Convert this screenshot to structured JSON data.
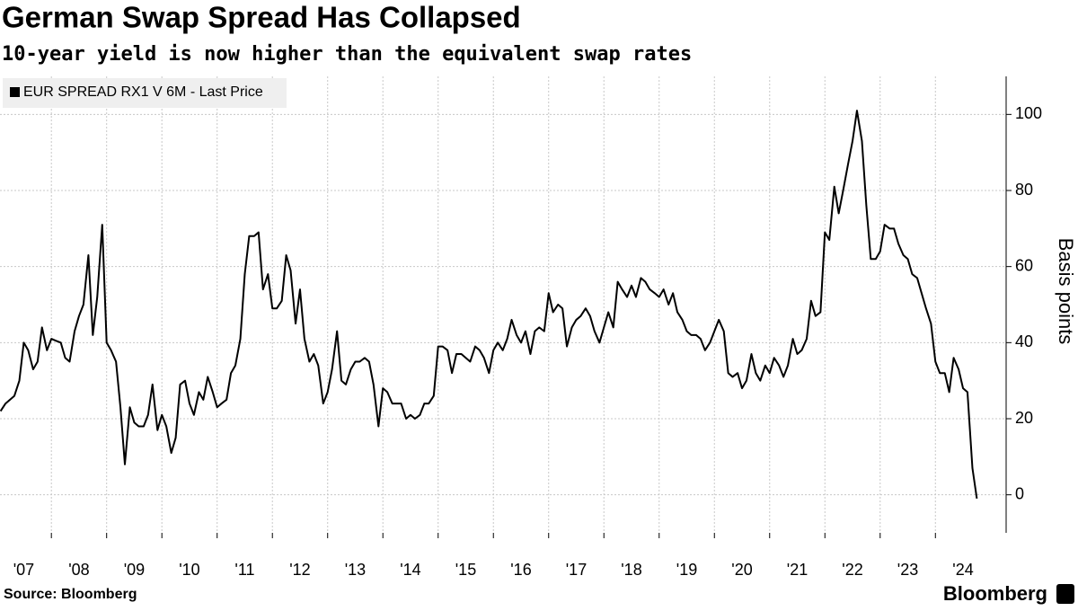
{
  "chart_data": {
    "type": "line",
    "title": "German Swap Spread Has Collapsed",
    "subtitle": "10-year yield is now higher than the equivalent swap rates",
    "y_label": "Basis points",
    "source": "Source: Bloomberg",
    "brand": "Bloomberg",
    "legend_position": "upper left",
    "grid": true,
    "xlim": [
      2007.07,
      2025.28
    ],
    "xticks": [
      {
        "value": 2007,
        "label": "'07"
      },
      {
        "value": 2008,
        "label": "'08"
      },
      {
        "value": 2009,
        "label": "'09"
      },
      {
        "value": 2010,
        "label": "'10"
      },
      {
        "value": 2011,
        "label": "'11"
      },
      {
        "value": 2012,
        "label": "'12"
      },
      {
        "value": 2013,
        "label": "'13"
      },
      {
        "value": 2014,
        "label": "'14"
      },
      {
        "value": 2015,
        "label": "'15"
      },
      {
        "value": 2016,
        "label": "'16"
      },
      {
        "value": 2017,
        "label": "'17"
      },
      {
        "value": 2018,
        "label": "'18"
      },
      {
        "value": 2019,
        "label": "'19"
      },
      {
        "value": 2020,
        "label": "'20"
      },
      {
        "value": 2021,
        "label": "'21"
      },
      {
        "value": 2022,
        "label": "'22"
      },
      {
        "value": 2023,
        "label": "'23"
      },
      {
        "value": 2024,
        "label": "'24"
      }
    ],
    "ylim": [
      -10,
      110
    ],
    "yticks": [
      0,
      20,
      40,
      60,
      80,
      100
    ],
    "x": [
      2007.08,
      2007.17,
      2007.25,
      2007.33,
      2007.42,
      2007.5,
      2007.58,
      2007.67,
      2007.75,
      2007.83,
      2007.92,
      2008,
      2008.08,
      2008.17,
      2008.25,
      2008.33,
      2008.42,
      2008.5,
      2008.58,
      2008.67,
      2008.75,
      2008.83,
      2008.92,
      2009,
      2009.08,
      2009.17,
      2009.25,
      2009.33,
      2009.42,
      2009.5,
      2009.58,
      2009.67,
      2009.75,
      2009.83,
      2009.92,
      2010,
      2010.08,
      2010.17,
      2010.25,
      2010.33,
      2010.42,
      2010.5,
      2010.58,
      2010.67,
      2010.75,
      2010.83,
      2010.92,
      2011,
      2011.08,
      2011.17,
      2011.25,
      2011.33,
      2011.42,
      2011.5,
      2011.58,
      2011.67,
      2011.75,
      2011.83,
      2011.92,
      2012,
      2012.08,
      2012.17,
      2012.25,
      2012.33,
      2012.42,
      2012.5,
      2012.58,
      2012.67,
      2012.75,
      2012.83,
      2012.92,
      2013,
      2013.08,
      2013.17,
      2013.25,
      2013.33,
      2013.42,
      2013.5,
      2013.58,
      2013.67,
      2013.75,
      2013.83,
      2013.92,
      2014,
      2014.08,
      2014.17,
      2014.25,
      2014.33,
      2014.42,
      2014.5,
      2014.58,
      2014.67,
      2014.75,
      2014.83,
      2014.92,
      2015,
      2015.08,
      2015.17,
      2015.25,
      2015.33,
      2015.42,
      2015.5,
      2015.58,
      2015.67,
      2015.75,
      2015.83,
      2015.92,
      2016,
      2016.08,
      2016.17,
      2016.25,
      2016.33,
      2016.42,
      2016.5,
      2016.58,
      2016.67,
      2016.75,
      2016.83,
      2016.92,
      2017,
      2017.08,
      2017.17,
      2017.25,
      2017.33,
      2017.42,
      2017.5,
      2017.58,
      2017.67,
      2017.75,
      2017.83,
      2017.92,
      2018,
      2018.08,
      2018.17,
      2018.25,
      2018.33,
      2018.42,
      2018.5,
      2018.58,
      2018.67,
      2018.75,
      2018.83,
      2018.92,
      2019,
      2019.08,
      2019.17,
      2019.25,
      2019.33,
      2019.42,
      2019.5,
      2019.58,
      2019.67,
      2019.75,
      2019.83,
      2019.92,
      2020,
      2020.08,
      2020.17,
      2020.25,
      2020.33,
      2020.42,
      2020.5,
      2020.58,
      2020.67,
      2020.75,
      2020.83,
      2020.92,
      2021,
      2021.08,
      2021.17,
      2021.25,
      2021.33,
      2021.42,
      2021.5,
      2021.58,
      2021.67,
      2021.75,
      2021.83,
      2021.92,
      2022,
      2022.08,
      2022.17,
      2022.25,
      2022.33,
      2022.42,
      2022.5,
      2022.58,
      2022.67,
      2022.75,
      2022.83,
      2022.92,
      2023,
      2023.08,
      2023.17,
      2023.25,
      2023.33,
      2023.42,
      2023.5,
      2023.58,
      2023.67,
      2023.75,
      2023.83,
      2023.92,
      2024,
      2024.08,
      2024.17,
      2024.25,
      2024.33,
      2024.42,
      2024.5,
      2024.58,
      2024.67,
      2024.75
    ],
    "series": [
      {
        "name": "EUR SPREAD RX1 V 6M - Last Price",
        "color": "#000000",
        "values": [
          22,
          24,
          25,
          26,
          30,
          40,
          38,
          33,
          35,
          44,
          38,
          41,
          40.5,
          40,
          36,
          35,
          43,
          47,
          50,
          63,
          42,
          52,
          71,
          40,
          38,
          35,
          23,
          8,
          23,
          19,
          18,
          18,
          21,
          29,
          17,
          21,
          18,
          11,
          15,
          29,
          30,
          24,
          21,
          27,
          25,
          31,
          27,
          23,
          24,
          25,
          32,
          34,
          41,
          58,
          68,
          68,
          69,
          54,
          58,
          49,
          49,
          51,
          63,
          59,
          45,
          54,
          41,
          35,
          37,
          34,
          24,
          27,
          33,
          43,
          30,
          29,
          33,
          35,
          35,
          36,
          35,
          29,
          18,
          28,
          27,
          24,
          24,
          24,
          20,
          21,
          20,
          21,
          24,
          24,
          26,
          39,
          39,
          38,
          32,
          37,
          37,
          36,
          35,
          39,
          38,
          36,
          32,
          38,
          40,
          38,
          41,
          46,
          42,
          40,
          43,
          37,
          43,
          44,
          43,
          53,
          48,
          50,
          49,
          39,
          44,
          46,
          47,
          49,
          47,
          43,
          40,
          44,
          48,
          44,
          56,
          54,
          52,
          55,
          52,
          57,
          56,
          54,
          53,
          52,
          54,
          50,
          53,
          48,
          46,
          43,
          42,
          42,
          41,
          38,
          40,
          43,
          46,
          43,
          32,
          31,
          32,
          28,
          30,
          37,
          32,
          30,
          34,
          32,
          36,
          34,
          31,
          34,
          41,
          37,
          38,
          41,
          51,
          47,
          48,
          69,
          67,
          81,
          74,
          80,
          87,
          93,
          101,
          93,
          76,
          62,
          62,
          64,
          71,
          70,
          70,
          66,
          63,
          62,
          58,
          57,
          53,
          49,
          45,
          35,
          32,
          32,
          27,
          36,
          33,
          28,
          27,
          7,
          -1
        ]
      }
    ]
  }
}
